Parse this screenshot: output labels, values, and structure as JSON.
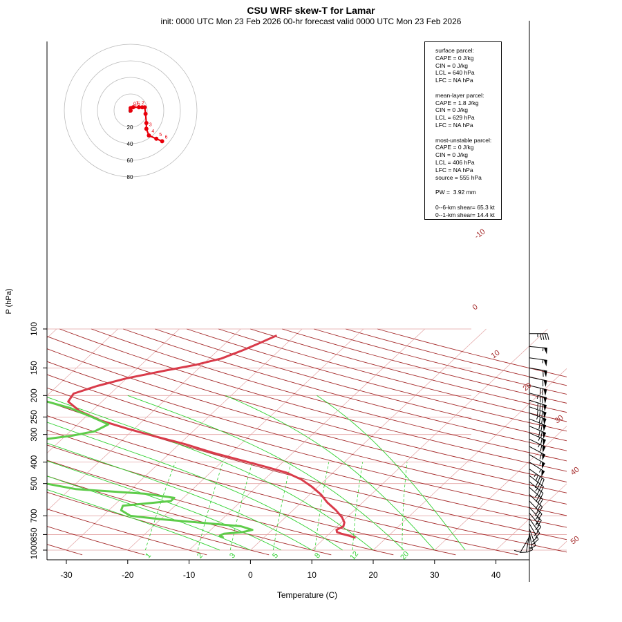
{
  "header": {
    "title": "CSU WRF skew-T for Lamar",
    "subtitle": "init: 0000 UTC Mon 23 Feb 2026     00-hr forecast valid 0000 UTC Mon 23 Feb 2026"
  },
  "chart_data": {
    "type": "line",
    "xlabel": "Temperature (C)",
    "ylabel": "P (hPa)",
    "x_ticks": [
      "-30",
      "-20",
      "-10",
      "0",
      "10",
      "20",
      "30",
      "40"
    ],
    "p_ticks": [
      "100",
      "150",
      "200",
      "250",
      "300",
      "400",
      "500",
      "700",
      "850",
      "1000"
    ],
    "xlim": [
      -33,
      45
    ],
    "plim": [
      1000,
      100
    ],
    "y_scale": "log",
    "isotherm_labels": [
      "-10",
      "0",
      "10",
      "20",
      "30",
      "40",
      "50"
    ],
    "mixing_ratio_labels": [
      "1",
      "2",
      "3",
      "5",
      "8",
      "12",
      "20"
    ],
    "series": [
      {
        "role": "temperature",
        "color": "#d93b4a",
        "points": [
          [
            15,
            880
          ],
          [
            13.5,
            860
          ],
          [
            12,
            843
          ],
          [
            11,
            830
          ],
          [
            10.5,
            810
          ],
          [
            11,
            780
          ],
          [
            10.5,
            750
          ],
          [
            9.2,
            710
          ],
          [
            7,
            660
          ],
          [
            4.3,
            610
          ],
          [
            1.8,
            560
          ],
          [
            -1,
            517
          ],
          [
            -4,
            479
          ],
          [
            -7.5,
            447
          ],
          [
            -12,
            420
          ],
          [
            -17,
            393
          ],
          [
            -23,
            363
          ],
          [
            -29,
            332
          ],
          [
            -35,
            307
          ],
          [
            -41,
            283
          ],
          [
            -47,
            259
          ],
          [
            -52,
            235
          ],
          [
            -55.5,
            213
          ],
          [
            -56,
            196
          ],
          [
            -53.5,
            181
          ],
          [
            -50,
            167
          ],
          [
            -45,
            154
          ],
          [
            -41,
            145
          ],
          [
            -38,
            136
          ],
          [
            -36,
            125
          ],
          [
            -34.5,
            116
          ],
          [
            -33,
            107
          ]
        ]
      },
      {
        "role": "dewpoint",
        "color": "#5ecc4a",
        "points": [
          [
            -6.5,
            880
          ],
          [
            -7.5,
            860
          ],
          [
            -7.2,
            843
          ],
          [
            -4.5,
            830
          ],
          [
            -3.2,
            810
          ],
          [
            -5.7,
            780
          ],
          [
            -12,
            755
          ],
          [
            -20,
            725
          ],
          [
            -25.5,
            700
          ],
          [
            -28,
            660
          ],
          [
            -28.5,
            630
          ],
          [
            -21.5,
            600
          ],
          [
            -21.5,
            580
          ],
          [
            -27,
            556
          ],
          [
            -39,
            530
          ],
          [
            -48,
            485
          ],
          [
            -52,
            458
          ],
          [
            -50,
            440
          ],
          [
            -50,
            420
          ],
          [
            -54,
            400
          ],
          [
            -59,
            373
          ],
          [
            -61,
            350
          ],
          [
            -57,
            330
          ],
          [
            -53,
            316
          ],
          [
            -49,
            304
          ],
          [
            -46,
            290
          ],
          [
            -45,
            270
          ],
          [
            -49,
            250
          ],
          [
            -54,
            228
          ],
          [
            -60,
            210
          ],
          [
            -64,
            198
          ],
          [
            -67,
            183
          ]
        ]
      }
    ],
    "hodograph": {
      "ring_labels": [
        "0",
        "20",
        "40",
        "60",
        "80"
      ],
      "points": [
        [
          0,
          0
        ],
        [
          0,
          3
        ],
        [
          3,
          4
        ],
        [
          10,
          4
        ],
        [
          14,
          4
        ],
        [
          17,
          4
        ],
        [
          18,
          -4
        ],
        [
          19,
          -15
        ],
        [
          19,
          -22
        ],
        [
          22,
          -30
        ],
        [
          31,
          -34
        ],
        [
          38,
          -37
        ]
      ],
      "point_labels": [
        "0",
        "0.5",
        "1",
        "2",
        "3",
        "4",
        "5",
        "6"
      ],
      "color": "#e8000b"
    },
    "stats": {
      "surface": [
        "surface parcel:",
        "CAPE = 0 J/kg",
        "CIN = 0 J/kg",
        "LCL = 640 hPa",
        "LFC = NA hPa"
      ],
      "mean_layer": [
        "mean-layer parcel:",
        "CAPE = 1.8 J/kg",
        "CIN = 0 J/kg",
        "LCL = 629 hPa",
        "LFC = NA hPa"
      ],
      "most_unstable": [
        "most-unstable parcel:",
        "CAPE = 0 J/kg",
        "CIN = 0 J/kg",
        "LCL = 406 hPa",
        "LFC = NA hPa",
        "source = 555 hPa"
      ],
      "pw": "PW =  3.92 mm",
      "shear": [
        "0--6-km shear= 65.3 kt",
        "0--1-km shear= 14.4 kt"
      ]
    },
    "wind_barbs_kt": [
      {
        "p": 105,
        "speed": 45,
        "dir": 270
      },
      {
        "p": 120,
        "speed": 55,
        "dir": 275
      },
      {
        "p": 135,
        "speed": 55,
        "dir": 278
      },
      {
        "p": 150,
        "speed": 60,
        "dir": 280
      },
      {
        "p": 165,
        "speed": 60,
        "dir": 282
      },
      {
        "p": 180,
        "speed": 70,
        "dir": 284
      },
      {
        "p": 195,
        "speed": 75,
        "dir": 285
      },
      {
        "p": 210,
        "speed": 80,
        "dir": 287
      },
      {
        "p": 225,
        "speed": 80,
        "dir": 289
      },
      {
        "p": 240,
        "speed": 75,
        "dir": 290
      },
      {
        "p": 255,
        "speed": 70,
        "dir": 292
      },
      {
        "p": 275,
        "speed": 70,
        "dir": 293
      },
      {
        "p": 295,
        "speed": 65,
        "dir": 294
      },
      {
        "p": 315,
        "speed": 65,
        "dir": 296
      },
      {
        "p": 340,
        "speed": 60,
        "dir": 298
      },
      {
        "p": 370,
        "speed": 55,
        "dir": 300
      },
      {
        "p": 400,
        "speed": 55,
        "dir": 302
      },
      {
        "p": 430,
        "speed": 45,
        "dir": 305
      },
      {
        "p": 460,
        "speed": 40,
        "dir": 308
      },
      {
        "p": 490,
        "speed": 35,
        "dir": 310
      },
      {
        "p": 520,
        "speed": 35,
        "dir": 312
      },
      {
        "p": 560,
        "speed": 30,
        "dir": 314
      },
      {
        "p": 600,
        "speed": 30,
        "dir": 316
      },
      {
        "p": 640,
        "speed": 25,
        "dir": 318
      },
      {
        "p": 680,
        "speed": 25,
        "dir": 320
      },
      {
        "p": 720,
        "speed": 20,
        "dir": 325
      },
      {
        "p": 760,
        "speed": 20,
        "dir": 330
      },
      {
        "p": 800,
        "speed": 15,
        "dir": 340
      },
      {
        "p": 830,
        "speed": 15,
        "dir": 350
      },
      {
        "p": 850,
        "speed": 10,
        "dir": 10
      },
      {
        "p": 870,
        "speed": 10,
        "dir": 30
      }
    ]
  }
}
